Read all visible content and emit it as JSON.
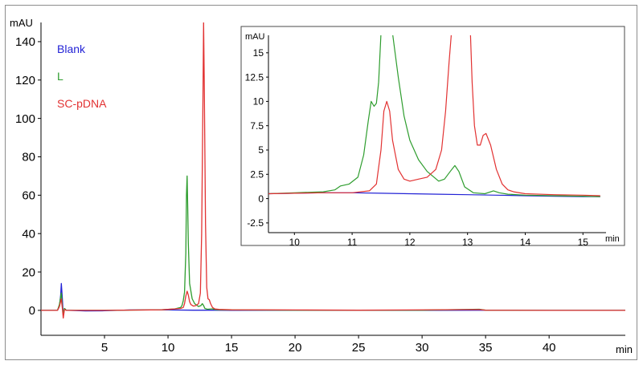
{
  "chart_data": [
    {
      "type": "line",
      "chart_id": "main",
      "xlabel": "min",
      "ylabel": "mAU",
      "xlim": [
        0,
        46
      ],
      "ylim": [
        -13,
        150
      ],
      "x_ticks": [
        5,
        10,
        15,
        20,
        25,
        30,
        35,
        40
      ],
      "y_ticks": [
        0,
        20,
        40,
        60,
        80,
        100,
        120,
        140
      ],
      "grid": false,
      "legend": {
        "placement": "top-left",
        "entries": [
          {
            "name": "Blank",
            "color": "#2323d6"
          },
          {
            "name": "L",
            "color": "#2e9d2e"
          },
          {
            "name": "SC-pDNA",
            "color": "#e23232"
          }
        ]
      },
      "series": [
        {
          "name": "Blank",
          "color": "#2323d6",
          "x": [
            0.0,
            1.3,
            1.45,
            1.55,
            1.6,
            1.68,
            1.75,
            1.85,
            2.0,
            2.2,
            3.5,
            5.0,
            7.0,
            10.0,
            12.0,
            13.5,
            15.0,
            20.0,
            25.0,
            30.0,
            35.0,
            40.0,
            46.0
          ],
          "y": [
            0.0,
            0.0,
            2.0,
            8.0,
            14.0,
            6.0,
            -3.0,
            1.0,
            0.0,
            0.0,
            -0.3,
            -0.2,
            0.2,
            0.2,
            0.1,
            0.1,
            0.0,
            0.1,
            0.0,
            0.0,
            0.1,
            0.0,
            0.0
          ]
        },
        {
          "name": "L",
          "color": "#2e9d2e",
          "x": [
            0.0,
            1.3,
            1.45,
            1.6,
            1.68,
            1.75,
            1.85,
            2.0,
            5.0,
            9.5,
            10.5,
            10.8,
            11.0,
            11.1,
            11.2,
            11.3,
            11.4,
            11.45,
            11.5,
            11.55,
            11.6,
            11.7,
            11.9,
            12.1,
            12.4,
            12.6,
            12.7,
            12.8,
            12.9,
            13.1,
            13.5,
            13.7,
            14.0,
            15.0,
            20.0,
            30.0,
            34.5,
            35.0,
            40.0,
            46.0
          ],
          "y": [
            0.0,
            0.0,
            3.0,
            9.0,
            2.0,
            -2.0,
            1.0,
            0.0,
            0.0,
            0.3,
            0.7,
            1.2,
            1.5,
            2.5,
            5.0,
            9.5,
            30.0,
            60.0,
            70.0,
            55.0,
            35.0,
            14.0,
            6.0,
            3.5,
            2.0,
            2.5,
            3.5,
            2.5,
            1.0,
            0.6,
            0.8,
            0.4,
            0.3,
            0.2,
            0.1,
            0.1,
            0.6,
            0.1,
            0.0,
            0.0
          ]
        },
        {
          "name": "SC-pDNA",
          "color": "#e23232",
          "x": [
            0.0,
            1.3,
            1.45,
            1.6,
            1.68,
            1.75,
            1.85,
            2.0,
            5.0,
            9.5,
            10.5,
            11.0,
            11.2,
            11.3,
            11.4,
            11.5,
            11.6,
            11.7,
            11.8,
            12.0,
            12.2,
            12.4,
            12.55,
            12.65,
            12.75,
            12.8,
            12.85,
            12.95,
            13.05,
            13.15,
            13.25,
            13.35,
            13.5,
            13.7,
            14.0,
            15.0,
            20.0,
            25.0,
            34.5,
            35.0,
            40.0,
            46.0
          ],
          "y": [
            0.0,
            0.0,
            2.0,
            6.0,
            1.0,
            -4.0,
            0.5,
            0.0,
            0.0,
            0.3,
            0.7,
            1.0,
            1.5,
            3.5,
            7.5,
            10.0,
            8.0,
            4.5,
            3.0,
            2.2,
            2.5,
            3.5,
            9.0,
            40.0,
            110.0,
            150.0,
            120.0,
            45.0,
            12.0,
            6.0,
            5.5,
            3.5,
            1.5,
            0.7,
            0.5,
            0.3,
            0.2,
            0.1,
            0.4,
            0.1,
            0.0,
            0.0
          ]
        }
      ]
    },
    {
      "type": "line",
      "chart_id": "inset",
      "xlabel": "min",
      "ylabel": "mAU",
      "xlim": [
        9.55,
        15.4
      ],
      "ylim": [
        -3.5,
        16.8
      ],
      "x_ticks": [
        10,
        11,
        12,
        13,
        14,
        15
      ],
      "y_ticks": [
        -2.5,
        0,
        2.5,
        5,
        7.5,
        10,
        12.5,
        15
      ],
      "y_tick_labels": [
        "-2.5",
        "0",
        "2.5",
        "5",
        "7.5",
        "10",
        "12.5",
        "15"
      ],
      "grid": false,
      "series": [
        {
          "name": "Blank",
          "color": "#2323d6",
          "x": [
            9.55,
            10.0,
            10.5,
            11.0,
            11.5,
            12.0,
            12.5,
            13.0,
            13.5,
            14.0,
            14.5,
            15.0,
            15.3
          ],
          "y": [
            0.5,
            0.55,
            0.6,
            0.6,
            0.55,
            0.5,
            0.45,
            0.4,
            0.35,
            0.3,
            0.25,
            0.2,
            0.2
          ]
        },
        {
          "name": "L",
          "color": "#2e9d2e",
          "x": [
            9.55,
            10.0,
            10.5,
            10.7,
            10.8,
            10.95,
            11.1,
            11.2,
            11.28,
            11.33,
            11.38,
            11.42,
            11.46,
            11.5,
            11.53,
            11.56,
            11.6,
            11.7,
            11.8,
            11.9,
            12.0,
            12.15,
            12.3,
            12.5,
            12.6,
            12.7,
            12.78,
            12.85,
            12.95,
            13.1,
            13.3,
            13.45,
            13.55,
            13.7,
            14.0,
            14.5,
            15.0,
            15.3
          ],
          "y": [
            0.5,
            0.6,
            0.7,
            0.9,
            1.3,
            1.5,
            2.2,
            4.5,
            8.0,
            10.0,
            9.5,
            9.8,
            12.0,
            17.0,
            17.0,
            17.0,
            17.0,
            17.0,
            12.5,
            8.5,
            6.0,
            4.0,
            2.8,
            1.8,
            2.0,
            2.8,
            3.4,
            2.8,
            1.2,
            0.6,
            0.5,
            0.8,
            0.6,
            0.45,
            0.35,
            0.3,
            0.25,
            0.2
          ]
        },
        {
          "name": "SC-pDNA",
          "color": "#e23232",
          "x": [
            9.55,
            10.0,
            10.5,
            11.0,
            11.3,
            11.42,
            11.5,
            11.55,
            11.6,
            11.65,
            11.7,
            11.8,
            11.9,
            12.0,
            12.15,
            12.3,
            12.45,
            12.55,
            12.62,
            12.68,
            12.72,
            12.75,
            13.0,
            13.05,
            13.08,
            13.12,
            13.17,
            13.22,
            13.27,
            13.32,
            13.4,
            13.5,
            13.6,
            13.7,
            13.8,
            14.0,
            14.5,
            15.0,
            15.3
          ],
          "y": [
            0.5,
            0.55,
            0.6,
            0.6,
            0.8,
            1.5,
            5.0,
            9.0,
            10.0,
            9.0,
            6.0,
            3.0,
            2.0,
            1.8,
            2.0,
            2.2,
            3.0,
            5.0,
            9.0,
            14.0,
            17.0,
            17.0,
            17.0,
            17.0,
            12.0,
            7.5,
            5.5,
            5.5,
            6.5,
            6.7,
            5.5,
            3.0,
            1.5,
            0.9,
            0.7,
            0.5,
            0.4,
            0.35,
            0.3
          ]
        }
      ]
    }
  ]
}
